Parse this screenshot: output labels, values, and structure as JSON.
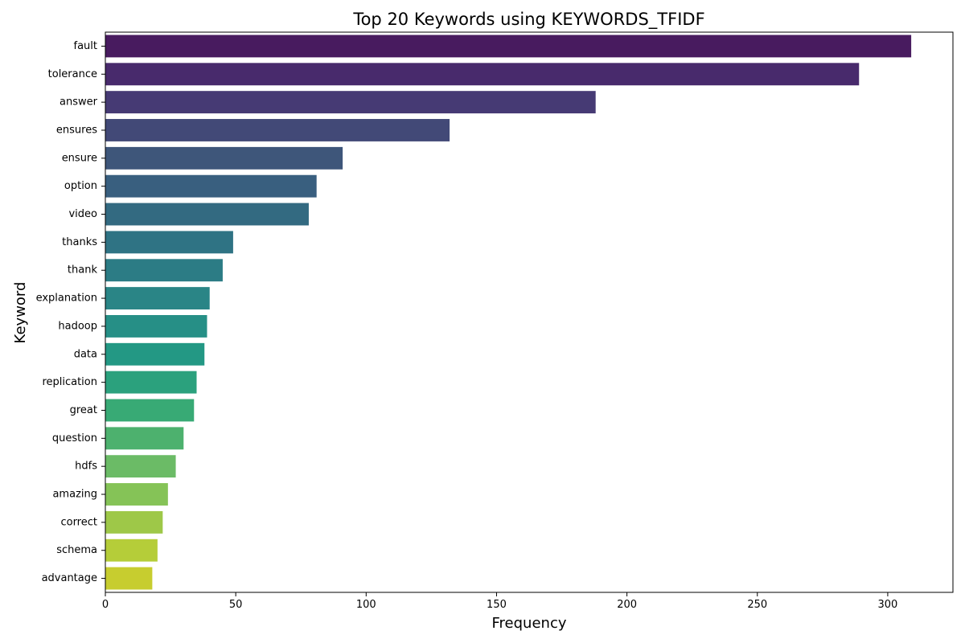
{
  "chart_data": {
    "type": "bar",
    "orientation": "horizontal",
    "title": "Top 20 Keywords using KEYWORDS_TFIDF",
    "xlabel": "Frequency",
    "ylabel": "Keyword",
    "xlim": [
      0,
      325
    ],
    "x_ticks": [
      0,
      50,
      100,
      150,
      200,
      250,
      300
    ],
    "grid": false,
    "legend": "none",
    "palette": "viridis",
    "categories": [
      "fault",
      "tolerance",
      "answer",
      "ensures",
      "ensure",
      "option",
      "video",
      "thanks",
      "thank",
      "explanation",
      "hadoop",
      "data",
      "replication",
      "great",
      "question",
      "hdfs",
      "amazing",
      "correct",
      "schema",
      "advantage"
    ],
    "values": [
      309,
      289,
      188,
      132,
      91,
      81,
      78,
      49,
      45,
      40,
      39,
      38,
      35,
      34,
      30,
      27,
      24,
      22,
      20,
      18
    ],
    "colors": [
      "#481b5f",
      "#482a6c",
      "#463a74",
      "#424977",
      "#3e567a",
      "#395f7f",
      "#336a81",
      "#2f7384",
      "#2c7c85",
      "#2a8586",
      "#268f86",
      "#239884",
      "#2ba17d",
      "#38aa75",
      "#4db16e",
      "#6bbb66",
      "#85c357",
      "#9ec848",
      "#b5cd39",
      "#c7cd2f"
    ]
  }
}
